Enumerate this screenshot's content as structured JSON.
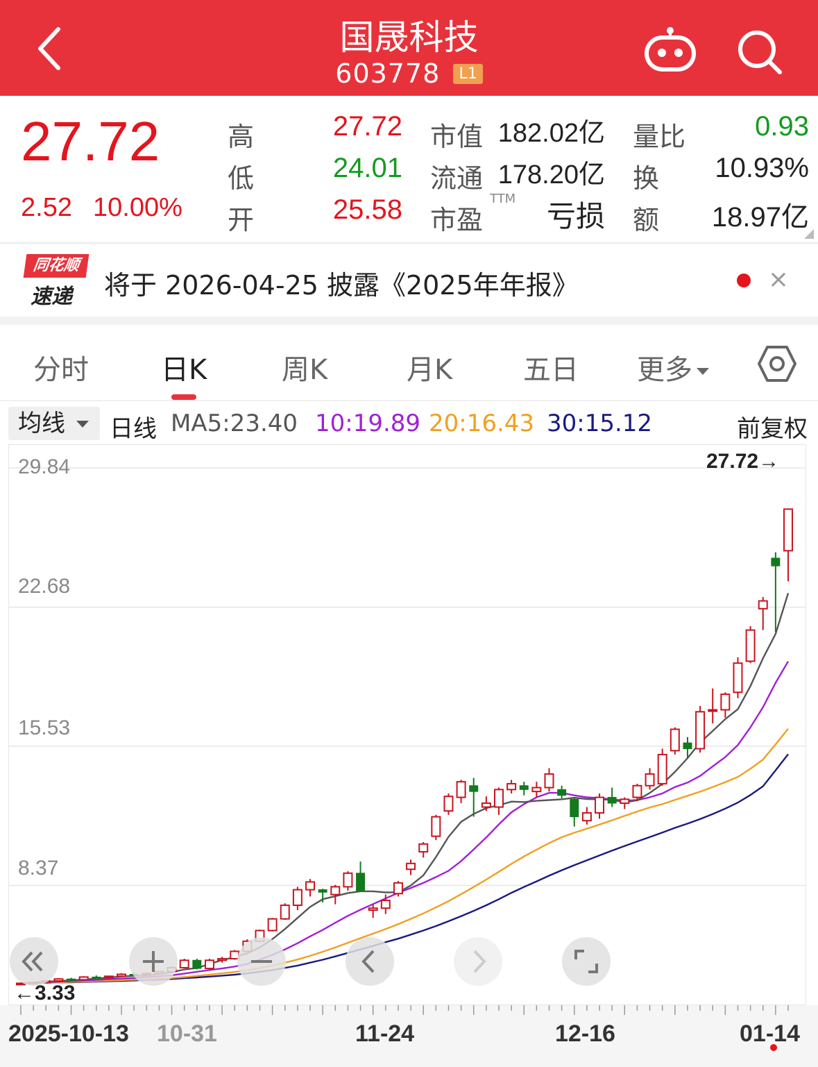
{
  "header": {
    "title": "国晟科技",
    "code": "603778",
    "badge": "L1",
    "bg_color": "#e8323b"
  },
  "quote": {
    "price": "27.72",
    "change": "2.52",
    "change_pct": "10.00%",
    "high_label": "高",
    "high": "27.72",
    "low_label": "低",
    "low": "24.01",
    "open_label": "开",
    "open": "25.58",
    "mktcap_label": "市值",
    "mktcap": "182.02亿",
    "float_label": "流通",
    "float": "178.20亿",
    "pe_label": "市盈",
    "pe_sup": "TTM",
    "pe": "亏损",
    "volratio_label": "量比",
    "volratio": "0.93",
    "turnover_label": "换",
    "turnover": "10.93%",
    "amount_label": "额",
    "amount": "18.97亿",
    "up_color": "#e5141d",
    "down_color": "#139b1f"
  },
  "notice": {
    "logo_top": "同花顺",
    "logo_bottom": "速递",
    "text": "将于 2026-04-25 披露《2025年年报》",
    "close": "×"
  },
  "tabs": [
    "分时",
    "日K",
    "周K",
    "月K",
    "五日",
    "更多"
  ],
  "active_tab": "日K",
  "ma_bar": {
    "select": "均线",
    "kind": "日线",
    "ma5": "MA5:23.40",
    "ma10": "10:19.89",
    "ma20": "20:16.43",
    "ma30": "30:15.12",
    "adjust": "前复权",
    "colors": {
      "ma5": "#555555",
      "ma10": "#a020d8",
      "ma20": "#f0a020",
      "ma30": "#1a1a80"
    }
  },
  "chart_data": {
    "type": "candlestick",
    "y_ticks": [
      "29.84",
      "22.68",
      "15.53",
      "8.37"
    ],
    "ylim": [
      3.21,
      29.84
    ],
    "x_labels": [
      "2025-10-13",
      "10-31",
      "11-24",
      "12-16",
      "01-14"
    ],
    "last_price_label": "27.72→",
    "min_price_label": "←3.33",
    "candles": [
      [
        3.33,
        3.36,
        3.3,
        3.34
      ],
      [
        3.34,
        3.4,
        3.32,
        3.38
      ],
      [
        3.38,
        3.48,
        3.35,
        3.46
      ],
      [
        3.46,
        3.6,
        3.42,
        3.56
      ],
      [
        3.56,
        3.62,
        3.48,
        3.52
      ],
      [
        3.52,
        3.7,
        3.5,
        3.66
      ],
      [
        3.66,
        3.74,
        3.58,
        3.64
      ],
      [
        3.64,
        3.72,
        3.55,
        3.7
      ],
      [
        3.7,
        3.86,
        3.66,
        3.8
      ],
      [
        3.8,
        3.9,
        3.72,
        3.78
      ],
      [
        3.78,
        3.92,
        3.7,
        3.84
      ],
      [
        3.84,
        3.98,
        3.78,
        3.94
      ],
      [
        3.94,
        4.2,
        3.9,
        4.14
      ],
      [
        4.14,
        4.6,
        4.1,
        4.52
      ],
      [
        4.52,
        4.6,
        4.05,
        4.1
      ],
      [
        4.1,
        4.6,
        4.05,
        4.52
      ],
      [
        4.52,
        4.7,
        4.4,
        4.6
      ],
      [
        4.6,
        5.05,
        4.55,
        4.98
      ],
      [
        4.98,
        5.6,
        4.95,
        5.5
      ],
      [
        5.5,
        6.1,
        5.45,
        6.05
      ],
      [
        6.05,
        6.7,
        6.0,
        6.65
      ],
      [
        6.65,
        7.45,
        6.6,
        7.35
      ],
      [
        7.35,
        8.3,
        7.1,
        8.15
      ],
      [
        8.15,
        8.7,
        7.8,
        8.55
      ],
      [
        8.15,
        8.2,
        7.5,
        8.02
      ],
      [
        7.9,
        8.4,
        7.4,
        8.3
      ],
      [
        8.3,
        9.1,
        8.1,
        9.0
      ],
      [
        9.0,
        9.6,
        8.05,
        8.1
      ],
      [
        7.1,
        7.4,
        6.7,
        7.2
      ],
      [
        7.2,
        7.9,
        6.9,
        7.6
      ],
      [
        7.95,
        8.6,
        7.8,
        8.5
      ],
      [
        9.2,
        9.7,
        8.9,
        9.5
      ],
      [
        10.1,
        10.6,
        9.8,
        10.5
      ],
      [
        10.9,
        12.0,
        10.7,
        11.9
      ],
      [
        12.2,
        13.1,
        12.0,
        12.95
      ],
      [
        12.9,
        13.8,
        12.6,
        13.7
      ],
      [
        13.5,
        13.9,
        11.9,
        13.2
      ],
      [
        12.4,
        12.95,
        12.2,
        12.6
      ],
      [
        12.4,
        13.4,
        12.0,
        13.3
      ],
      [
        13.3,
        13.8,
        13.1,
        13.6
      ],
      [
        13.5,
        13.7,
        13.0,
        13.3
      ],
      [
        13.2,
        13.7,
        12.9,
        13.4
      ],
      [
        13.4,
        14.4,
        13.2,
        14.1
      ],
      [
        13.3,
        13.5,
        12.85,
        13.0
      ],
      [
        12.8,
        12.9,
        11.4,
        11.9
      ],
      [
        11.7,
        12.4,
        11.5,
        12.1
      ],
      [
        12.1,
        13.1,
        11.8,
        12.9
      ],
      [
        12.9,
        13.4,
        12.4,
        12.6
      ],
      [
        12.6,
        12.9,
        12.3,
        12.8
      ],
      [
        12.9,
        13.6,
        12.7,
        13.5
      ],
      [
        13.5,
        14.4,
        13.3,
        14.1
      ],
      [
        13.6,
        15.4,
        13.5,
        15.1
      ],
      [
        15.3,
        16.5,
        15.1,
        16.4
      ],
      [
        15.7,
        16.0,
        14.9,
        15.4
      ],
      [
        15.4,
        17.6,
        15.2,
        17.3
      ],
      [
        17.4,
        18.5,
        16.7,
        17.4
      ],
      [
        17.4,
        18.3,
        17.0,
        18.2
      ],
      [
        18.3,
        20.1,
        18.0,
        19.8
      ],
      [
        19.9,
        21.7,
        19.8,
        21.5
      ],
      [
        22.6,
        23.2,
        21.5,
        23.0
      ],
      [
        25.2,
        25.5,
        21.4,
        24.8
      ],
      [
        25.58,
        27.72,
        24.01,
        27.72
      ]
    ],
    "ma5": [
      3.34,
      3.37,
      3.41,
      3.46,
      3.49,
      3.53,
      3.58,
      3.63,
      3.69,
      3.72,
      3.75,
      3.82,
      3.91,
      4.05,
      4.12,
      4.33,
      4.53,
      4.68,
      4.88,
      5.18,
      5.61,
      6.13,
      6.7,
      7.27,
      7.66,
      7.82,
      7.98,
      8.07,
      8.07,
      8.01,
      8.02,
      8.37,
      8.89,
      9.83,
      10.87,
      11.64,
      12.05,
      12.35,
      12.49,
      12.68,
      12.66,
      12.72,
      12.76,
      12.8,
      12.88,
      12.81,
      12.8,
      12.77,
      12.64,
      12.75,
      13.13,
      13.59,
      14.21,
      14.92,
      15.72,
      16.31,
      16.92,
      17.43,
      18.62,
      20.05,
      21.31,
      23.4
    ],
    "ma10": [
      3.34,
      3.36,
      3.39,
      3.42,
      3.45,
      3.48,
      3.51,
      3.55,
      3.58,
      3.61,
      3.66,
      3.7,
      3.75,
      3.84,
      3.93,
      4.02,
      4.1,
      4.2,
      4.33,
      4.56,
      4.8,
      5.08,
      5.4,
      5.75,
      6.08,
      6.45,
      6.81,
      7.12,
      7.41,
      7.7,
      7.99,
      8.24,
      8.5,
      8.8,
      9.12,
      9.62,
      10.22,
      10.84,
      11.51,
      12.13,
      12.55,
      12.9,
      13.13,
      13.13,
      13.0,
      12.9,
      12.86,
      12.8,
      12.73,
      12.76,
      12.9,
      13.1,
      13.43,
      13.66,
      14.0,
      14.49,
      14.97,
      15.59,
      16.5,
      17.53,
      18.79,
      19.89
    ],
    "ma20": [
      3.34,
      3.35,
      3.37,
      3.39,
      3.41,
      3.43,
      3.45,
      3.47,
      3.5,
      3.52,
      3.55,
      3.58,
      3.61,
      3.66,
      3.72,
      3.78,
      3.85,
      3.92,
      4.01,
      4.12,
      4.25,
      4.4,
      4.56,
      4.75,
      4.96,
      5.18,
      5.42,
      5.66,
      5.89,
      6.13,
      6.38,
      6.65,
      6.93,
      7.24,
      7.56,
      7.92,
      8.29,
      8.67,
      9.07,
      9.48,
      9.86,
      10.21,
      10.55,
      10.85,
      11.08,
      11.29,
      11.5,
      11.72,
      11.95,
      12.17,
      12.38,
      12.55,
      12.77,
      12.98,
      13.19,
      13.43,
      13.68,
      13.95,
      14.37,
      14.84,
      15.63,
      16.43
    ],
    "ma30": [
      3.34,
      3.35,
      3.36,
      3.38,
      3.39,
      3.41,
      3.42,
      3.44,
      3.46,
      3.48,
      3.51,
      3.53,
      3.56,
      3.6,
      3.64,
      3.68,
      3.73,
      3.78,
      3.85,
      3.93,
      4.02,
      4.13,
      4.25,
      4.4,
      4.55,
      4.72,
      4.9,
      5.08,
      5.26,
      5.45,
      5.63,
      5.84,
      6.05,
      6.28,
      6.53,
      6.79,
      7.06,
      7.35,
      7.66,
      7.99,
      8.29,
      8.58,
      8.87,
      9.15,
      9.41,
      9.66,
      9.91,
      10.16,
      10.4,
      10.63,
      10.86,
      11.09,
      11.33,
      11.55,
      11.78,
      12.04,
      12.32,
      12.63,
      13.02,
      13.47,
      14.29,
      15.12
    ]
  },
  "controls": [
    "rewind-icon",
    "zoom-in-icon",
    "zoom-out-icon",
    "prev-icon",
    "next-icon",
    "fullscreen-icon"
  ]
}
